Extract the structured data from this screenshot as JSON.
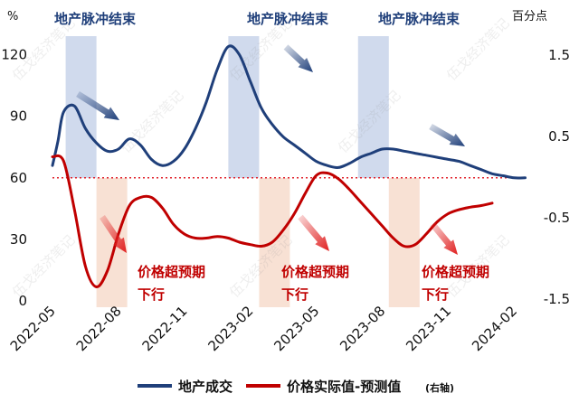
{
  "chart_data": {
    "type": "line",
    "x_labels": [
      "2022-05",
      "2022-08",
      "2022-11",
      "2023-02",
      "2023-05",
      "2023-08",
      "2023-11",
      "2024-02"
    ],
    "left_axis": {
      "unit": "%",
      "ticks": [
        0,
        30,
        60,
        90,
        120
      ],
      "range": [
        0,
        130
      ]
    },
    "right_axis": {
      "unit": "百分点",
      "ticks": [
        -1.5,
        -0.5,
        0.5,
        1.5
      ],
      "range": [
        -1.8,
        1.8
      ]
    },
    "reference_line": {
      "axis": "left",
      "value": 60,
      "color": "#e0202a",
      "style": "dotted"
    },
    "series": [
      {
        "name": "地产成交",
        "axis": "left",
        "color": "#1f3f7a",
        "x": [
          0,
          0.25,
          0.5,
          1.0,
          1.5,
          2.0,
          2.5,
          3.0,
          3.5,
          4.0,
          4.5,
          5.0,
          5.5,
          6.0,
          6.5,
          7.0,
          7.5,
          8.0,
          8.5,
          9.0,
          9.5,
          10.0,
          10.5,
          11.0,
          11.5,
          12.0,
          12.5,
          13.0,
          13.5,
          14.0,
          14.5,
          15.0,
          15.5,
          16.0,
          16.5,
          17.0,
          17.5,
          18.0,
          18.5,
          19.0,
          19.5,
          20.0,
          20.5,
          21.0,
          21.5
        ],
        "values": [
          66,
          78,
          92,
          95,
          84,
          77,
          73,
          74,
          79,
          76,
          69,
          66,
          68,
          74,
          84,
          97,
          113,
          124,
          120,
          107,
          94,
          86,
          80,
          76,
          72,
          68,
          66,
          65,
          67,
          70,
          72,
          74,
          74,
          73,
          72,
          71,
          70,
          69,
          68,
          66,
          64,
          62,
          61,
          60,
          60
        ]
      },
      {
        "name": "价格实际值-预测值",
        "name_suffix": "(右轴)",
        "axis": "right",
        "color": "#c00000",
        "x": [
          0,
          0.5,
          1.0,
          1.5,
          2.0,
          2.5,
          3.0,
          3.5,
          4.0,
          4.5,
          5.0,
          5.5,
          6.0,
          6.5,
          7.0,
          7.5,
          8.0,
          8.5,
          9.0,
          9.5,
          10.0,
          10.5,
          11.0,
          11.5,
          12.0,
          12.5,
          13.0,
          13.5,
          14.0,
          14.5,
          15.0,
          15.5,
          16.0,
          16.5,
          17.0,
          17.5,
          18.0,
          18.5,
          19.0,
          19.5,
          20.0
        ],
        "values": [
          0.25,
          0.2,
          -0.4,
          -1.1,
          -1.35,
          -1.15,
          -0.7,
          -0.35,
          -0.25,
          -0.25,
          -0.38,
          -0.58,
          -0.7,
          -0.75,
          -0.75,
          -0.73,
          -0.75,
          -0.8,
          -0.83,
          -0.85,
          -0.8,
          -0.65,
          -0.45,
          -0.2,
          0.02,
          0.05,
          -0.02,
          -0.15,
          -0.3,
          -0.45,
          -0.6,
          -0.75,
          -0.85,
          -0.83,
          -0.7,
          -0.55,
          -0.45,
          -0.4,
          -0.37,
          -0.35,
          -0.32
        ]
      }
    ],
    "shaded_regions": [
      {
        "color": "blue",
        "from": 0.6,
        "to": 2.0
      },
      {
        "color": "red",
        "from": 2.0,
        "to": 3.4
      },
      {
        "color": "blue",
        "from": 8.0,
        "to": 9.4
      },
      {
        "color": "red",
        "from": 9.4,
        "to": 10.8
      },
      {
        "color": "blue",
        "from": 13.9,
        "to": 15.3
      },
      {
        "color": "red",
        "from": 15.3,
        "to": 16.7
      }
    ],
    "annotations": [
      {
        "text": "地产脉冲结束",
        "color": "blue"
      },
      {
        "text": "地产脉冲结束",
        "color": "blue"
      },
      {
        "text": "地产脉冲结束",
        "color": "blue"
      },
      {
        "text": "价格超预期",
        "line2": "下行",
        "color": "red"
      },
      {
        "text": "价格超预期",
        "line2": "下行",
        "color": "red"
      },
      {
        "text": "价格超预期",
        "line2": "下行",
        "color": "red"
      }
    ],
    "watermark": "伍戈经济笔记",
    "colors": {
      "blue": "#1f3f7a",
      "red": "#c00000",
      "blue_band": "#c8d4ea",
      "red_band": "#f7dccc"
    }
  }
}
